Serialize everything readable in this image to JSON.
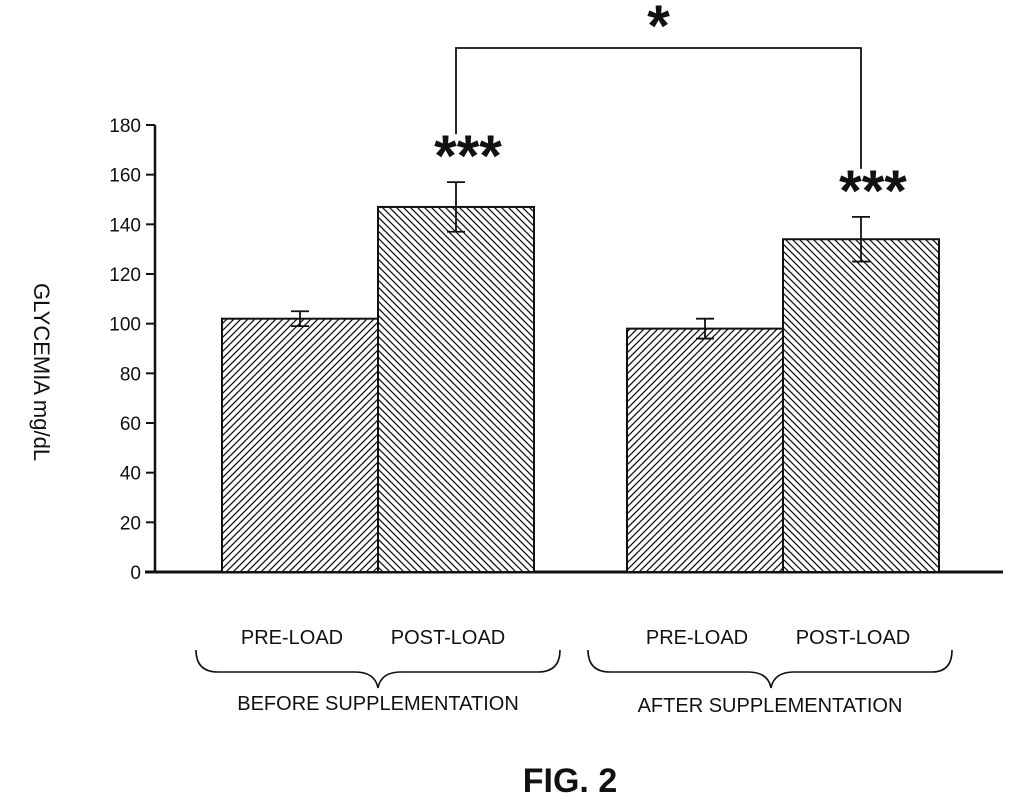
{
  "figure": {
    "label": "FIG. 2",
    "group_labels": [
      "BEFORE SUPPLEMENTATION",
      "AFTER SUPPLEMENTATION"
    ]
  },
  "chart_data": {
    "type": "bar",
    "ylabel": "GLYCEMIA mg/dL",
    "ylim": [
      0,
      180
    ],
    "yticks": [
      0,
      20,
      40,
      60,
      80,
      100,
      120,
      140,
      160,
      180
    ],
    "grid": false,
    "groups": [
      {
        "name": "BEFORE SUPPLEMENTATION",
        "bars": [
          {
            "label": "PRE-LOAD",
            "value": 102,
            "error": 3,
            "hatch": "forward",
            "sig": ""
          },
          {
            "label": "POST-LOAD",
            "value": 147,
            "error": 10,
            "hatch": "backward",
            "sig": "***"
          }
        ]
      },
      {
        "name": "AFTER SUPPLEMENTATION",
        "bars": [
          {
            "label": "PRE-LOAD",
            "value": 98,
            "error": 4,
            "hatch": "forward",
            "sig": ""
          },
          {
            "label": "POST-LOAD",
            "value": 134,
            "error": 9,
            "hatch": "backward",
            "sig": "***"
          }
        ]
      }
    ],
    "comparison": {
      "between": [
        "BEFORE SUPPLEMENTATION POST-LOAD",
        "AFTER SUPPLEMENTATION POST-LOAD"
      ],
      "sig": "*"
    }
  }
}
